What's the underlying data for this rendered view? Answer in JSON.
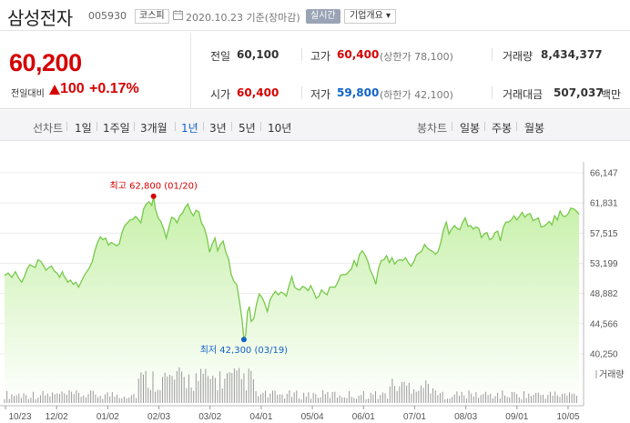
{
  "header": {
    "name": "삼성전자",
    "code": "005930",
    "market": "코스피",
    "date": "2020.10.23 기준(장마감)",
    "realtime": "실시간",
    "company": "기업개요 ▾"
  },
  "price": {
    "current": "60,200",
    "change_label": "전일대비",
    "change": "100",
    "change_pct": "+0.17%",
    "direction": "up"
  },
  "stats": {
    "prev_label": "전일",
    "prev": "60,100",
    "high_label": "고가",
    "high": "60,400",
    "upper_limit": "(상한가 78,100)",
    "volume_label": "거래량",
    "volume": "8,434,377",
    "open_label": "시가",
    "open": "60,400",
    "low_label": "저가",
    "low": "59,800",
    "lower_limit": "(하한가 42,100)",
    "amount_label": "거래대금",
    "amount": "507,037",
    "amount_unit": "백만"
  },
  "tabs": {
    "line_header": "선차트",
    "line": [
      "1일",
      "1주일",
      "3개월",
      "1년",
      "3년",
      "5년",
      "10년"
    ],
    "selected": "1년",
    "candle_header": "봉차트",
    "candle": [
      "일봉",
      "주봉",
      "월봉"
    ]
  },
  "colors": {
    "up": "#d60000",
    "down": "#1162c9",
    "area_line": "#77c94a",
    "area_top": "#c6f0a8",
    "area_bottom": "#ffffff",
    "volume_bar": "#999999"
  },
  "chart_data": {
    "type": "area",
    "y_ticks": [
      "66,147",
      "61,831",
      "57,515",
      "53,199",
      "48,882",
      "44,566",
      "40,250"
    ],
    "ylim": [
      40250,
      66147
    ],
    "x_ticks": [
      "10/23",
      "12/02",
      "01/02",
      "02/03",
      "03/02",
      "04/01",
      "05/04",
      "06/01",
      "07/01",
      "08/03",
      "09/01",
      "10/05"
    ],
    "high_label": "최고 62,800 (01/20)",
    "low_label": "최저 42,300 (03/19)",
    "volume_label": "거래량",
    "price_series": [
      [
        0,
        51500
      ],
      [
        4,
        51800
      ],
      [
        8,
        51200
      ],
      [
        12,
        52000
      ],
      [
        16,
        51000
      ],
      [
        19,
        50500
      ],
      [
        22,
        51300
      ],
      [
        25,
        52400
      ],
      [
        28,
        53000
      ],
      [
        31,
        52800
      ],
      [
        34,
        52600
      ],
      [
        37,
        53700
      ],
      [
        40,
        53500
      ],
      [
        43,
        52900
      ],
      [
        46,
        52200
      ],
      [
        49,
        52600
      ],
      [
        52,
        52800
      ],
      [
        55,
        52100
      ],
      [
        58,
        51800
      ],
      [
        61,
        51200
      ],
      [
        64,
        52000
      ],
      [
        66,
        51300
      ],
      [
        68,
        51000
      ],
      [
        70,
        50500
      ],
      [
        73,
        50800
      ],
      [
        76,
        50200
      ],
      [
        79,
        50500
      ],
      [
        82,
        49800
      ],
      [
        85,
        50600
      ],
      [
        88,
        51400
      ],
      [
        91,
        52000
      ],
      [
        94,
        52600
      ],
      [
        97,
        53400
      ],
      [
        100,
        55000
      ],
      [
        103,
        56200
      ],
      [
        106,
        57000
      ],
      [
        109,
        56600
      ],
      [
        112,
        56800
      ],
      [
        115,
        55800
      ],
      [
        118,
        56200
      ],
      [
        121,
        56000
      ],
      [
        124,
        55700
      ],
      [
        127,
        56000
      ],
      [
        130,
        57600
      ],
      [
        133,
        58600
      ],
      [
        136,
        59000
      ],
      [
        139,
        59400
      ],
      [
        142,
        59500
      ],
      [
        145,
        59900
      ],
      [
        148,
        59500
      ],
      [
        151,
        59000
      ],
      [
        154,
        61000
      ],
      [
        157,
        61700
      ],
      [
        160,
        62000
      ],
      [
        163,
        61500
      ],
      [
        165,
        62800
      ],
      [
        167,
        61000
      ],
      [
        170,
        59700
      ],
      [
        173,
        59200
      ],
      [
        176,
        58200
      ],
      [
        179,
        56800
      ],
      [
        182,
        58400
      ],
      [
        185,
        59800
      ],
      [
        188,
        59600
      ],
      [
        191,
        59000
      ],
      [
        194,
        60000
      ],
      [
        197,
        60400
      ],
      [
        200,
        61200
      ],
      [
        203,
        61700
      ],
      [
        206,
        60600
      ],
      [
        209,
        60000
      ],
      [
        212,
        60800
      ],
      [
        215,
        60600
      ],
      [
        218,
        59000
      ],
      [
        221,
        58300
      ],
      [
        224,
        57000
      ],
      [
        227,
        54800
      ],
      [
        230,
        56000
      ],
      [
        233,
        56800
      ],
      [
        236,
        55000
      ],
      [
        239,
        55900
      ],
      [
        242,
        56400
      ],
      [
        245,
        54800
      ],
      [
        248,
        53800
      ],
      [
        251,
        51600
      ],
      [
        254,
        50600
      ],
      [
        257,
        50200
      ],
      [
        260,
        47800
      ],
      [
        263,
        45100
      ],
      [
        265,
        42300
      ],
      [
        267,
        43000
      ],
      [
        269,
        46300
      ],
      [
        271,
        47000
      ],
      [
        273,
        44900
      ],
      [
        276,
        45300
      ],
      [
        279,
        47400
      ],
      [
        282,
        48800
      ],
      [
        285,
        48300
      ],
      [
        288,
        47500
      ],
      [
        291,
        46300
      ],
      [
        294,
        48000
      ],
      [
        297,
        48700
      ],
      [
        300,
        49200
      ],
      [
        303,
        48700
      ],
      [
        306,
        49100
      ],
      [
        309,
        48900
      ],
      [
        312,
        48500
      ],
      [
        315,
        50000
      ],
      [
        318,
        51300
      ],
      [
        321,
        49800
      ],
      [
        324,
        49500
      ],
      [
        327,
        49400
      ],
      [
        330,
        49900
      ],
      [
        333,
        49700
      ],
      [
        336,
        49300
      ],
      [
        339,
        50000
      ],
      [
        342,
        49200
      ],
      [
        345,
        48200
      ],
      [
        348,
        48500
      ],
      [
        351,
        49400
      ],
      [
        354,
        49000
      ],
      [
        357,
        48700
      ],
      [
        360,
        49800
      ],
      [
        363,
        49800
      ],
      [
        366,
        49800
      ],
      [
        369,
        50500
      ],
      [
        372,
        51500
      ],
      [
        375,
        51600
      ],
      [
        378,
        51600
      ],
      [
        381,
        52000
      ],
      [
        384,
        52400
      ],
      [
        387,
        53600
      ],
      [
        390,
        52800
      ],
      [
        393,
        54500
      ],
      [
        396,
        55000
      ],
      [
        399,
        54400
      ],
      [
        402,
        53600
      ],
      [
        405,
        52200
      ],
      [
        408,
        51400
      ],
      [
        411,
        50200
      ],
      [
        414,
        52400
      ],
      [
        417,
        53600
      ],
      [
        420,
        53700
      ],
      [
        423,
        54300
      ],
      [
        426,
        53300
      ],
      [
        429,
        54000
      ],
      [
        432,
        53100
      ],
      [
        435,
        53600
      ],
      [
        438,
        53700
      ],
      [
        441,
        53600
      ],
      [
        444,
        54000
      ],
      [
        447,
        53300
      ],
      [
        450,
        52800
      ],
      [
        453,
        53400
      ],
      [
        456,
        54400
      ],
      [
        459,
        54700
      ],
      [
        462,
        55000
      ],
      [
        465,
        55900
      ],
      [
        468,
        55400
      ],
      [
        471,
        55100
      ],
      [
        474,
        54900
      ],
      [
        477,
        54500
      ],
      [
        480,
        54900
      ],
      [
        483,
        56200
      ],
      [
        486,
        58000
      ],
      [
        489,
        59100
      ],
      [
        492,
        57400
      ],
      [
        495,
        58100
      ],
      [
        498,
        58600
      ],
      [
        501,
        58200
      ],
      [
        504,
        58000
      ],
      [
        507,
        59000
      ],
      [
        510,
        59700
      ],
      [
        513,
        58500
      ],
      [
        516,
        58600
      ],
      [
        519,
        58100
      ],
      [
        522,
        58400
      ],
      [
        525,
        58200
      ],
      [
        528,
        56900
      ],
      [
        531,
        57400
      ],
      [
        534,
        57600
      ],
      [
        537,
        56600
      ],
      [
        540,
        56800
      ],
      [
        543,
        57600
      ],
      [
        546,
        57800
      ],
      [
        549,
        56400
      ],
      [
        552,
        58300
      ],
      [
        555,
        59100
      ],
      [
        558,
        59100
      ],
      [
        561,
        59400
      ],
      [
        564,
        60000
      ],
      [
        567,
        59400
      ],
      [
        570,
        59900
      ],
      [
        573,
        60500
      ],
      [
        576,
        59800
      ],
      [
        579,
        60200
      ],
      [
        582,
        60300
      ],
      [
        585,
        59300
      ],
      [
        588,
        59500
      ],
      [
        591,
        59700
      ],
      [
        594,
        58400
      ],
      [
        597,
        58500
      ],
      [
        600,
        58800
      ],
      [
        603,
        59200
      ],
      [
        606,
        58700
      ],
      [
        609,
        60000
      ],
      [
        612,
        59400
      ],
      [
        615,
        60700
      ],
      [
        618,
        60000
      ],
      [
        621,
        59900
      ],
      [
        624,
        60300
      ],
      [
        627,
        61100
      ],
      [
        630,
        61000
      ],
      [
        633,
        60700
      ],
      [
        636,
        60200
      ]
    ]
  }
}
